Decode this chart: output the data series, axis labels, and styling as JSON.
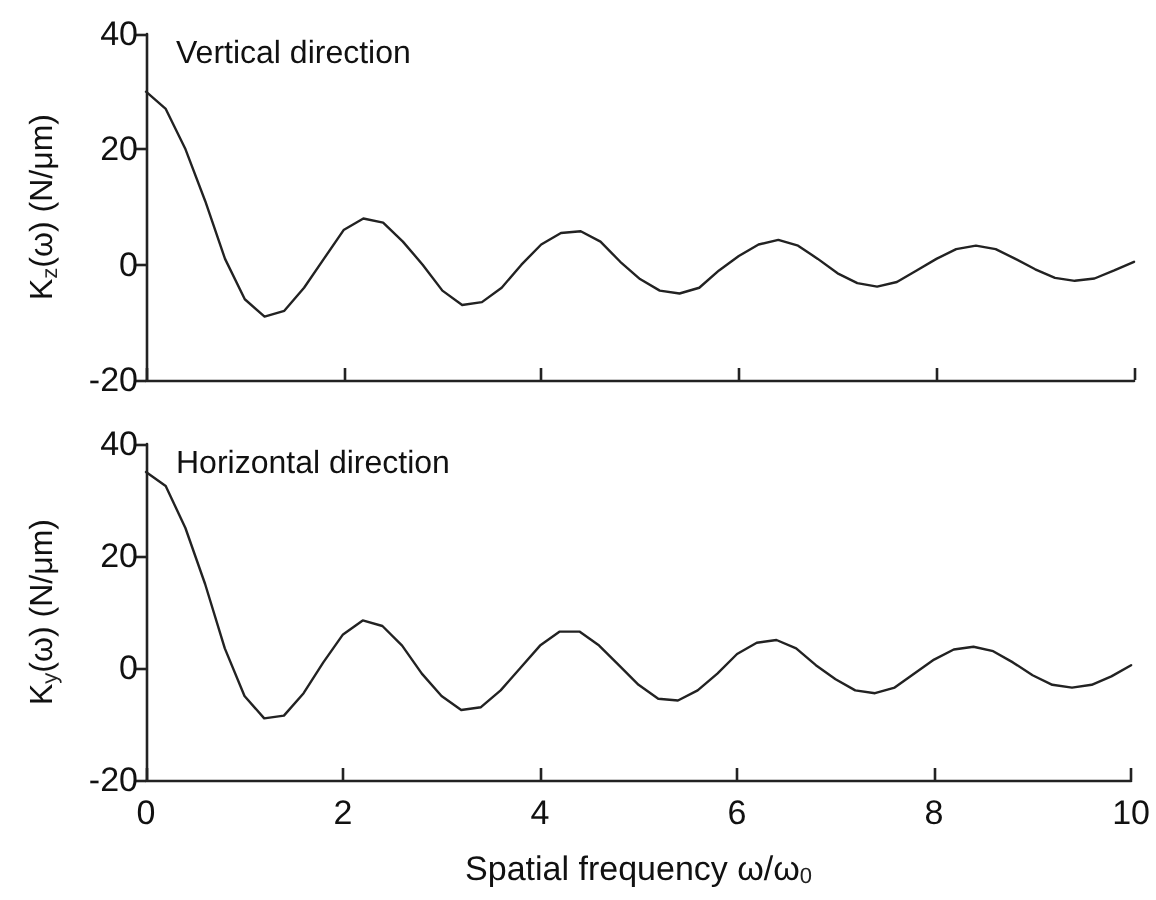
{
  "chart_data": [
    {
      "type": "line",
      "ylabel": "K$_{z}$(ω) (N/μm)",
      "annotations": [
        "Vertical direction"
      ],
      "xlim": [
        0,
        10
      ],
      "xticks": [
        0,
        2,
        4,
        6,
        8,
        10
      ],
      "ylim": [
        -20,
        40
      ],
      "yticks": [
        -20,
        0,
        20,
        40
      ],
      "tick_labels": "y",
      "grid": false,
      "marker": "none",
      "line_style": "solid",
      "x": [
        0,
        0.2,
        0.4,
        0.6,
        0.8,
        1,
        1.2,
        1.4,
        1.6,
        1.8,
        2,
        2.2,
        2.4,
        2.6,
        2.8,
        3,
        3.2,
        3.4,
        3.6,
        3.8,
        4,
        4.2,
        4.4,
        4.6,
        4.8,
        5,
        5.2,
        5.4,
        5.6,
        5.8,
        6,
        6.2,
        6.4,
        6.6,
        6.8,
        7,
        7.2,
        7.4,
        7.6,
        7.8,
        8,
        8.2,
        8.4,
        8.6,
        8.8,
        9,
        9.2,
        9.4,
        9.6,
        9.8,
        10
      ],
      "series": [
        {
          "color": "#222222",
          "values": [
            30,
            27,
            20,
            11,
            1,
            -6,
            -9,
            -8,
            -4,
            1,
            6,
            8,
            7.3,
            4,
            0,
            -4.5,
            -7,
            -6.5,
            -4,
            0,
            3.5,
            5.5,
            5.8,
            4,
            0.5,
            -2.5,
            -4.5,
            -5,
            -4,
            -1,
            1.5,
            3.5,
            4.3,
            3.3,
            1,
            -1.5,
            -3.2,
            -3.8,
            -3,
            -1,
            1,
            2.7,
            3.3,
            2.7,
            1,
            -0.8,
            -2.3,
            -2.8,
            -2.4,
            -1,
            0.5
          ]
        }
      ]
    },
    {
      "type": "line",
      "xlabel": "Spatial frequency ω/ω$_{0}$",
      "ylabel": "K$_{y}$(ω) (N/μm)",
      "annotations": [
        "Horizontal direction"
      ],
      "xlim": [
        0,
        10
      ],
      "xticks": [
        0,
        2,
        4,
        6,
        8,
        10
      ],
      "ylim": [
        -20,
        40
      ],
      "yticks": [
        -20,
        0,
        20,
        40
      ],
      "grid": false,
      "marker": "none",
      "line_style": "solid",
      "x": [
        0,
        0.2,
        0.4,
        0.6,
        0.8,
        1,
        1.2,
        1.4,
        1.6,
        1.8,
        2,
        2.2,
        2.4,
        2.6,
        2.8,
        3,
        3.2,
        3.4,
        3.6,
        3.8,
        4,
        4.2,
        4.4,
        4.6,
        4.8,
        5,
        5.2,
        5.4,
        5.6,
        5.8,
        6,
        6.2,
        6.4,
        6.6,
        6.8,
        7,
        7.2,
        7.4,
        7.6,
        7.8,
        8,
        8.2,
        8.4,
        8.6,
        8.8,
        9,
        9.2,
        9.4,
        9.6,
        9.8,
        10
      ],
      "series": [
        {
          "color": "#222222",
          "values": [
            35,
            32.5,
            25,
            15,
            3.5,
            -5,
            -9,
            -8.5,
            -4.5,
            1,
            6,
            8.5,
            7.5,
            4,
            -1,
            -5,
            -7.5,
            -7,
            -4,
            0,
            4,
            6.5,
            6.5,
            4,
            0.5,
            -3,
            -5.5,
            -5.8,
            -4,
            -1,
            2.5,
            4.5,
            5,
            3.5,
            0.5,
            -2,
            -4,
            -4.5,
            -3.5,
            -1,
            1.5,
            3.3,
            3.8,
            3,
            1,
            -1.3,
            -3,
            -3.5,
            -3,
            -1.5,
            0.5
          ]
        }
      ]
    }
  ]
}
